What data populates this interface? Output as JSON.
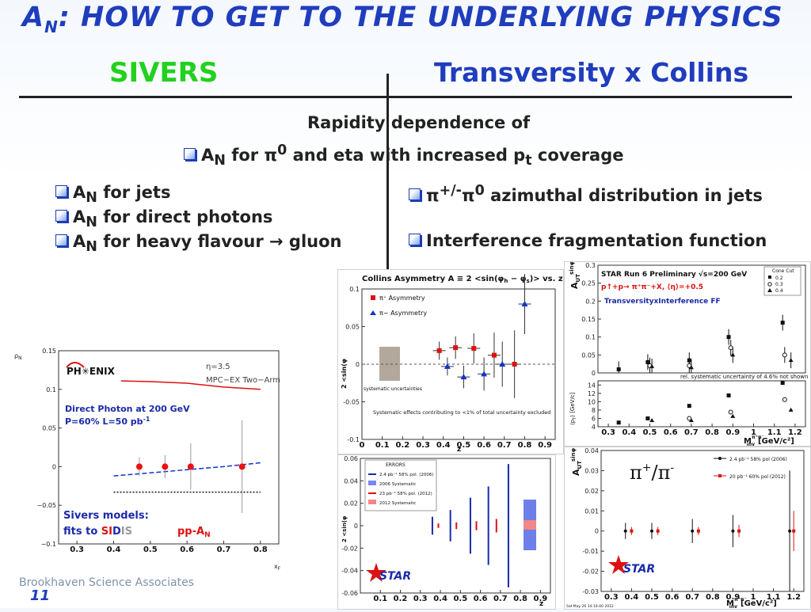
{
  "title": {
    "prefix": "A",
    "sub": "N",
    "rest": ": HOW TO GET TO THE UNDERLYING PHYSICS"
  },
  "sivers_heading": "SIVERS",
  "transversity_heading": "Transversity x Collins",
  "center": {
    "line1": "Rapidity dependence of",
    "line2": {
      "a": "A",
      "sub": "N",
      "b": " for ",
      "pi": "π",
      "sup": "0",
      "c": " and eta with increased p",
      "tsub": "t",
      "d": " coverage"
    }
  },
  "left_bullets": [
    {
      "a": "A",
      "sub": "N",
      "b": " for jets"
    },
    {
      "a": "A",
      "sub": "N",
      "b": " for direct photons"
    },
    {
      "a": "A",
      "sub": "N",
      "b": " for heavy flavour ",
      "arrow": "→",
      "c": " gluon"
    }
  ],
  "right_bullets": [
    {
      "pi": "π",
      "sup": "+/-",
      "pi2": "π",
      "sup2": "0",
      "b": " azimuthal distribution in jets"
    },
    {
      "b": "Interference fragmentation function"
    }
  ],
  "phenix_plot": {
    "ylabel": "ρ",
    "ylabel_sub": "N",
    "logo": "PH✳ENIX",
    "eta_label": "η=3.5",
    "detector_label": "MPC−EX Two−Arm",
    "annot1": "Direct Photon at 200 GeV",
    "annot2": "P=60% L=50 pb",
    "annot2_sup": "-1",
    "models1": "Sivers models:",
    "models2": "fits to ",
    "sidis_si": "SI",
    "sidis_d": "D",
    "sidis_is": "IS",
    "ppa": "pp-A",
    "ppa_sub": "N",
    "xlabel": "x",
    "xlabel_sub": "F",
    "colors": {
      "red_curve": "#dd1111",
      "blue_curve": "#1133cc",
      "annot": "#1a2aa8"
    }
  },
  "collins_plot": {
    "title": "Collins Asymmetry A ≡ 2 <sin(φ",
    "title_h": "h",
    "title_mid": " − φ",
    "title_s": "s",
    "title_end": ")> vs. z",
    "legend_pos": "π⁺ Asymmetry",
    "legend_neg": "π− Asymmetry",
    "syst_label": "systematic uncertainties",
    "note": "Systematic effects contributing to <1% of total uncertainty excluded",
    "ylabel": "2 <sin(φ",
    "xlabel": "z"
  },
  "errors_plot": {
    "legend_title": "ERRORS",
    "legend": [
      "2.4 pb⁻¹ 58% pol. (2006)",
      "2006 Systematic",
      "23 pb⁻¹ 58% pol. (2012)",
      "2012 Systematic"
    ],
    "ylabel": "2 <sin(φ",
    "xlabel": "z",
    "star": "STAR"
  },
  "iff_plot": {
    "header1": "STAR Run 6 Preliminary √s=200 GeV",
    "header2": "p↑+p→ π⁺π⁻+X, ⟨η⟩=+0.5",
    "header3": "TransversityxInterference FF",
    "cone_title": "Cone Cut",
    "cone": [
      "0.2",
      "0.3",
      "0.4"
    ],
    "note": "rel. systematic uncertainty of 4.6% not shown",
    "ylabel": "A",
    "ylabel_sub": "UT",
    "ylabel_sup": "sinφ",
    "ylabel2": "⟨p",
    "ylabel2_rest": "⟩ [GeV/c]",
    "xlabel": "M",
    "xlabel_sup": "π⁺π⁻",
    "xlabel_sub": "inv",
    "xlabel_unit": "[GeV/c²]"
  },
  "pipi_plot": {
    "label": "π",
    "label_sup1": "+",
    "label_mid": "/π",
    "label_sup2": "-",
    "legend": [
      "2.4 pb⁻¹ 58% pol (2006)",
      "20 pb⁻¹ 60% pol (2012)"
    ],
    "ylabel": "A",
    "ylabel_sub": "UT",
    "ylabel_sup": "sinφ",
    "xlabel": "M",
    "xlabel_sup": "π⁺π⁻",
    "xlabel_sub": "inv",
    "xlabel_unit": "[GeV/c²]",
    "star": "STAR",
    "timestamp": "Sat May 26 14:10:40 2012"
  },
  "footer": "Brookhaven Science Associates",
  "page_number": "11",
  "chart_data": [
    {
      "type": "scatter",
      "title": "",
      "xlabel": "x_F",
      "ylabel": "ρ_N",
      "xlim": [
        0.25,
        0.85
      ],
      "ylim": [
        -0.1,
        0.15
      ],
      "x_ticks": [
        0.3,
        0.4,
        0.5,
        0.6,
        0.7,
        0.8
      ],
      "y_ticks": [
        0.15,
        0.1,
        0.05,
        0,
        -0.05,
        -0.1
      ],
      "series": [
        {
          "x": [
            0.47,
            0.54,
            0.61,
            0.75
          ],
          "y": [
            0.0,
            0.0,
            0.0,
            0.0
          ],
          "yerr": [
            0.012,
            0.015,
            0.03,
            0.06
          ]
        }
      ],
      "curves": [
        {
          "color": "red",
          "x": [
            0.42,
            0.5,
            0.6,
            0.7,
            0.8
          ],
          "y": [
            0.111,
            0.11,
            0.108,
            0.103,
            0.1
          ]
        },
        {
          "color": "blue",
          "x": [
            0.4,
            0.5,
            0.6,
            0.7,
            0.8
          ],
          "y": [
            -0.012,
            -0.008,
            -0.004,
            0.0,
            0.005
          ]
        },
        {
          "color": "black",
          "x": [
            0.4,
            0.8
          ],
          "y": [
            -0.033,
            -0.033
          ]
        }
      ]
    },
    {
      "type": "scatter",
      "title": "Collins Asymmetry A ≡ 2 <sin(φh − φs)> vs. z",
      "xlabel": "z",
      "ylabel": "2 <sin(φh − φs)>",
      "xlim": [
        0,
        0.95
      ],
      "ylim": [
        -0.1,
        0.1
      ],
      "x_ticks": [
        0,
        0.1,
        0.2,
        0.3,
        0.4,
        0.5,
        0.6,
        0.7,
        0.8,
        0.9
      ],
      "y_ticks": [
        0.1,
        0.05,
        0,
        -0.05,
        -0.1
      ],
      "series": [
        {
          "name": "π⁺ Asymmetry",
          "x": [
            0.38,
            0.46,
            0.55,
            0.65,
            0.75
          ],
          "y": [
            0.018,
            0.022,
            0.021,
            0.012,
            0.0
          ],
          "yerr": [
            0.012,
            0.015,
            0.02,
            0.03,
            0.045
          ]
        },
        {
          "name": "π− Asymmetry",
          "x": [
            0.42,
            0.5,
            0.6,
            0.69,
            0.8
          ],
          "y": [
            -0.003,
            -0.017,
            -0.013,
            0.0,
            0.08
          ],
          "yerr": [
            0.012,
            0.015,
            0.022,
            0.03,
            0.04
          ]
        }
      ]
    },
    {
      "type": "scatter",
      "title": "",
      "xlabel": "z",
      "ylabel": "2 <sin(φh−φs)>",
      "xlim": [
        0,
        0.95
      ],
      "ylim": [
        -0.06,
        0.06
      ],
      "x_ticks": [
        0.1,
        0.2,
        0.3,
        0.4,
        0.5,
        0.6,
        0.7,
        0.8,
        0.9
      ],
      "y_ticks": [
        0.06,
        0.04,
        0.02,
        0,
        -0.02,
        -0.04,
        -0.06
      ],
      "series": [
        {
          "name": "2.4 pb⁻¹ 58% pol. (2006)",
          "x": [
            0.36,
            0.45,
            0.55,
            0.64,
            0.74
          ],
          "y": [
            0,
            0,
            0,
            0,
            0
          ],
          "yerr": [
            0.008,
            0.014,
            0.025,
            0.035,
            0.055
          ]
        },
        {
          "name": "23 pb⁻¹ 58% pol. (2012)",
          "x": [
            0.39,
            0.48,
            0.58,
            0.68
          ],
          "y": [
            0,
            0,
            0,
            0
          ],
          "yerr": [
            0.002,
            0.003,
            0.004,
            0.006
          ]
        }
      ]
    },
    {
      "type": "scatter",
      "title": "STAR Run 6 Preliminary √s=200 GeV",
      "xlabel": "M_inv^π⁺π⁻ [GeV/c²]",
      "ylabel": "A_UT^sinφ",
      "xlim": [
        0.25,
        1.25
      ],
      "ylim": [
        0,
        0.3
      ],
      "x_ticks": [
        0.3,
        0.4,
        0.5,
        0.6,
        0.7,
        0.8,
        0.9,
        1,
        1.1,
        1.2
      ],
      "y_ticks": [
        0,
        0.05,
        0.1,
        0.15,
        0.2,
        0.25,
        0.3
      ],
      "series": [
        {
          "name": "0.2",
          "x": [
            0.35,
            0.49,
            0.69,
            0.88,
            1.14
          ],
          "y": [
            0.01,
            0.03,
            0.035,
            0.1,
            0.14
          ]
        },
        {
          "name": "0.3",
          "x": [
            0.5,
            0.69,
            0.89,
            1.15
          ],
          "y": [
            0.02,
            0.02,
            0.07,
            0.05
          ]
        },
        {
          "name": "0.4",
          "x": [
            0.51,
            0.7,
            0.9,
            1.18
          ],
          "y": [
            0.018,
            0.015,
            0.05,
            0.035
          ]
        }
      ],
      "lower_panel": {
        "ylabel": "⟨pT⟩ [GeV/c]",
        "ylim": [
          4,
          14
        ],
        "series": [
          {
            "name": "0.2",
            "x": [
              0.35,
              0.49,
              0.69,
              0.88,
              1.14
            ],
            "y": [
              5,
              6,
              9,
              11.5,
              14.5
            ]
          },
          {
            "name": "0.3",
            "x": [
              0.69,
              0.89,
              1.15
            ],
            "y": [
              6,
              7.5,
              10.5
            ]
          },
          {
            "name": "0.4",
            "x": [
              0.51,
              0.7,
              0.9,
              1.18
            ],
            "y": [
              5.5,
              5.5,
              6.5,
              8
            ]
          }
        ]
      }
    },
    {
      "type": "scatter",
      "title": "",
      "xlabel": "M_inv^π⁺π⁻ [GeV/c²]",
      "ylabel": "A_UT^sinφ",
      "xlim": [
        0.25,
        1.25
      ],
      "ylim": [
        -0.03,
        0.04
      ],
      "x_ticks": [
        0.3,
        0.4,
        0.5,
        0.6,
        0.7,
        0.8,
        0.9,
        1,
        1.1,
        1.2
      ],
      "y_ticks": [
        0.04,
        0.03,
        0.02,
        0.01,
        0,
        -0.01,
        -0.02,
        -0.03
      ],
      "series": [
        {
          "name": "2.4 pb⁻¹ 58% pol (2006)",
          "x": [
            0.37,
            0.5,
            0.7,
            0.9,
            1.18
          ],
          "y": [
            0,
            0,
            0,
            0,
            0
          ],
          "yerr": [
            0.004,
            0.004,
            0.006,
            0.008,
            0.03
          ]
        },
        {
          "name": "20 pb⁻¹ 60% pol (2012)",
          "x": [
            0.4,
            0.53,
            0.73,
            0.93,
            1.2
          ],
          "y": [
            0,
            0,
            0,
            0,
            0
          ],
          "yerr": [
            0.002,
            0.002,
            0.002,
            0.003,
            0.01
          ]
        }
      ]
    }
  ]
}
